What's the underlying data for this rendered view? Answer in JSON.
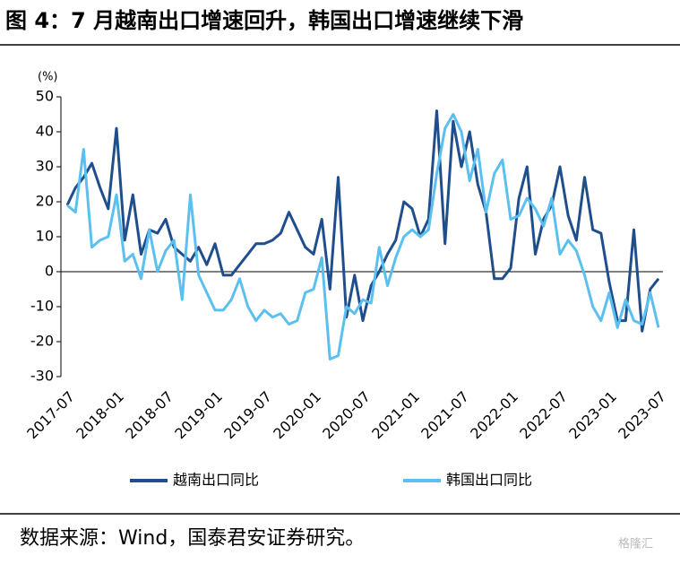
{
  "title": "图 4：7 月越南出口增速回升，韩国出口增速继续下滑",
  "source": "数据来源：Wind，国泰君安证券研究。",
  "watermark": "格隆汇",
  "chart_data": {
    "type": "line",
    "y_label": "(%)",
    "categories": [
      "2017-07",
      null,
      null,
      null,
      null,
      null,
      "2018-01",
      null,
      null,
      null,
      null,
      null,
      "2018-07",
      null,
      null,
      null,
      null,
      null,
      "2019-01",
      null,
      null,
      null,
      null,
      null,
      "2019-07",
      null,
      null,
      null,
      null,
      null,
      "2020-01",
      null,
      null,
      null,
      null,
      null,
      "2020-07",
      null,
      null,
      null,
      null,
      null,
      "2021-01",
      null,
      null,
      null,
      null,
      null,
      "2021-07",
      null,
      null,
      null,
      null,
      null,
      "2022-01",
      null,
      null,
      null,
      null,
      null,
      "2022-07",
      null,
      null,
      null,
      null,
      null,
      "2023-01",
      null,
      null,
      null,
      null,
      null,
      "2023-07"
    ],
    "series": [
      {
        "name": "越南出口同比",
        "color": "#1f4e8c",
        "values": [
          19,
          24,
          27,
          31,
          24,
          18,
          41,
          9,
          22,
          5,
          12,
          11,
          15,
          7,
          5,
          3,
          7,
          2,
          8,
          -1,
          -1,
          2,
          5,
          8,
          8,
          9,
          11,
          17,
          12,
          7,
          5,
          15,
          -5,
          27,
          -13,
          -1,
          -14,
          -4,
          0,
          5,
          9,
          20,
          18,
          10,
          15,
          46,
          8,
          43,
          30,
          40,
          25,
          17,
          -2,
          -2,
          1,
          21,
          30,
          5,
          15,
          19,
          30,
          16,
          9,
          27,
          12,
          11,
          -3,
          -14,
          -14,
          12,
          -17,
          -5,
          -2
        ]
      },
      {
        "name": "韩国出口同比",
        "color": "#5bc0f0",
        "values": [
          19,
          17,
          35,
          7,
          9,
          10,
          22,
          3,
          5,
          -2,
          12,
          0,
          6,
          9,
          -8,
          22,
          -1,
          -6,
          -11,
          -11,
          -8,
          -2,
          -10,
          -14,
          -11,
          -13,
          -12,
          -15,
          -14,
          -6,
          -5,
          4,
          -25,
          -24,
          -10,
          -12,
          -8,
          -9,
          7,
          -4,
          4,
          10,
          12,
          10,
          12,
          28,
          41,
          45,
          40,
          26,
          35,
          17,
          28,
          32,
          15,
          16,
          21,
          18,
          13,
          21,
          5,
          9,
          6,
          -1,
          -10,
          -14,
          -6,
          -16,
          -8,
          -14,
          -15,
          -6,
          -16
        ]
      }
    ],
    "ylim": [
      -30,
      50
    ],
    "yticks": [
      -30,
      -20,
      -10,
      0,
      10,
      20,
      30,
      40,
      50
    ],
    "legend": "bottom"
  }
}
